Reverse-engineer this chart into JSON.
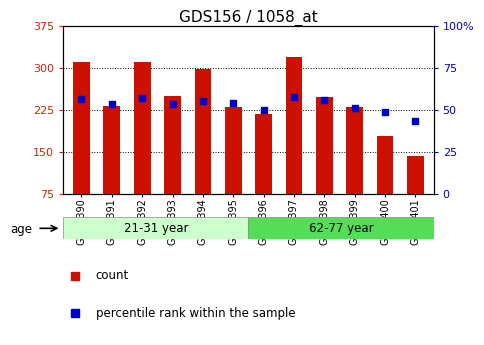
{
  "title": "GDS156 / 1058_at",
  "samples": [
    "GSM2390",
    "GSM2391",
    "GSM2392",
    "GSM2393",
    "GSM2394",
    "GSM2395",
    "GSM2396",
    "GSM2397",
    "GSM2398",
    "GSM2399",
    "GSM2400",
    "GSM2401"
  ],
  "counts": [
    310,
    232,
    310,
    250,
    298,
    230,
    218,
    320,
    248,
    230,
    178,
    143
  ],
  "percentile_vals": [
    245,
    235,
    247,
    235,
    241,
    238,
    225,
    248,
    242,
    228,
    222,
    205
  ],
  "ymin": 75,
  "ymax": 375,
  "yticks": [
    75,
    150,
    225,
    300,
    375
  ],
  "yticks_right": [
    0,
    25,
    50,
    75,
    100
  ],
  "bar_color": "#cc1100",
  "dot_color": "#0000cc",
  "group1_label": "21-31 year",
  "group2_label": "62-77 year",
  "group1_color": "#ccffcc",
  "group2_color": "#55dd55",
  "age_label": "age",
  "legend_count": "count",
  "legend_pct": "percentile rank within the sample",
  "bar_width": 0.55,
  "title_fontsize": 11,
  "tick_fontsize": 8,
  "bg_color": "#ffffff"
}
